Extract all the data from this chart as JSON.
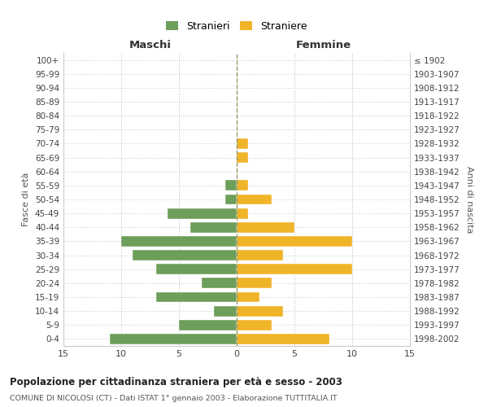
{
  "age_groups": [
    "0-4",
    "5-9",
    "10-14",
    "15-19",
    "20-24",
    "25-29",
    "30-34",
    "35-39",
    "40-44",
    "45-49",
    "50-54",
    "55-59",
    "60-64",
    "65-69",
    "70-74",
    "75-79",
    "80-84",
    "85-89",
    "90-94",
    "95-99",
    "100+"
  ],
  "birth_years": [
    "1998-2002",
    "1993-1997",
    "1988-1992",
    "1983-1987",
    "1978-1982",
    "1973-1977",
    "1968-1972",
    "1963-1967",
    "1958-1962",
    "1953-1957",
    "1948-1952",
    "1943-1947",
    "1938-1942",
    "1933-1937",
    "1928-1932",
    "1923-1927",
    "1918-1922",
    "1913-1917",
    "1908-1912",
    "1903-1907",
    "≤ 1902"
  ],
  "males": [
    11,
    5,
    2,
    7,
    3,
    7,
    9,
    10,
    4,
    6,
    1,
    1,
    0,
    0,
    0,
    0,
    0,
    0,
    0,
    0,
    0
  ],
  "females": [
    8,
    3,
    4,
    2,
    3,
    10,
    4,
    10,
    5,
    1,
    3,
    1,
    0,
    1,
    1,
    0,
    0,
    0,
    0,
    0,
    0
  ],
  "male_color": "#6d9e5a",
  "female_color": "#f0b429",
  "xlim": 15,
  "title": "Popolazione per cittadinanza straniera per età e sesso - 2003",
  "subtitle": "COMUNE DI NICOLOSI (CT) - Dati ISTAT 1° gennaio 2003 - Elaborazione TUTTITALIA.IT",
  "xlabel_left": "Maschi",
  "xlabel_right": "Femmine",
  "ylabel_left": "Fasce di età",
  "ylabel_right": "Anni di nascita",
  "legend_male": "Stranieri",
  "legend_female": "Straniere",
  "bg_color": "#ffffff",
  "grid_color": "#cccccc"
}
